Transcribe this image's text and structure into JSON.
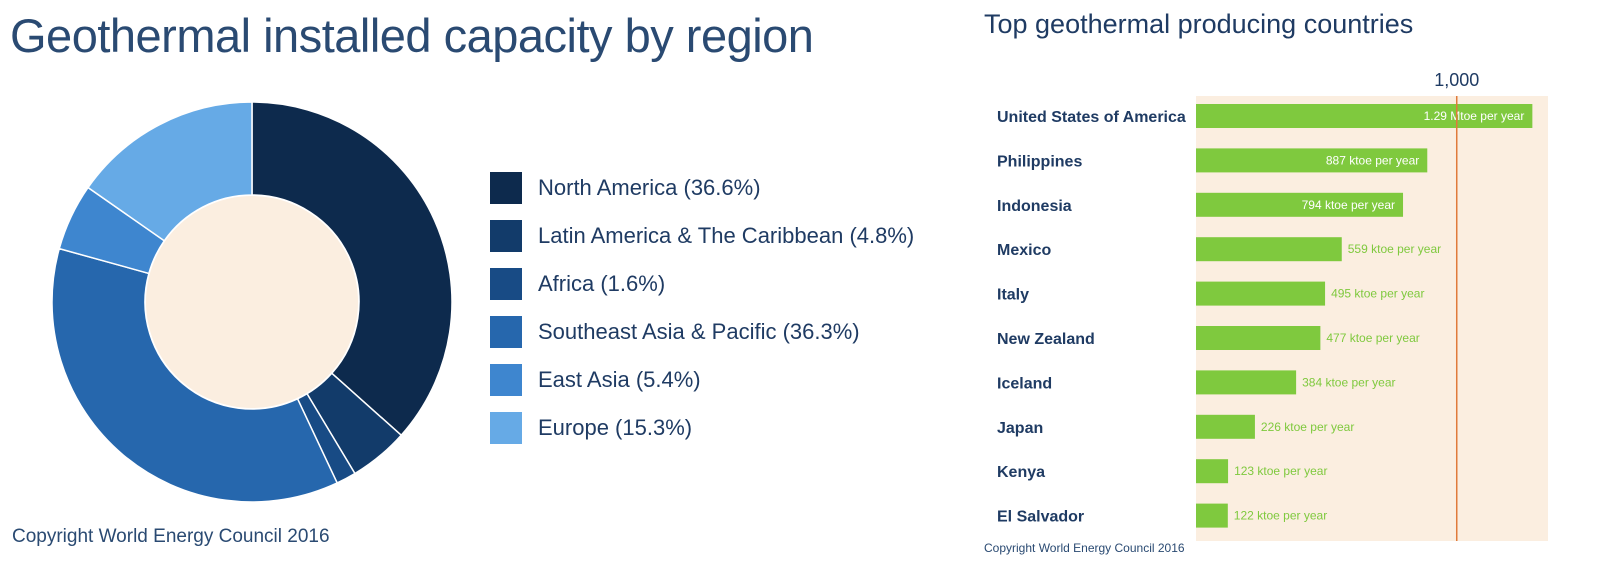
{
  "left": {
    "title": "Geothermal installed capacity by region",
    "copyright": "Copyright World Energy Council 2016"
  },
  "right": {
    "title": "Top geothermal producing countries",
    "copyright": "Copyright World Energy Council 2016"
  },
  "colors": {
    "donut_hole": "#fbeee0",
    "bar_bg": "#fbeee0",
    "bar": "#7fc93e",
    "reference_line": "#e07a3a",
    "text": "#1f3b63"
  },
  "chart_data": [
    {
      "type": "pie",
      "donut": true,
      "title": "Geothermal installed capacity by region",
      "legend_position": "right",
      "slices": [
        {
          "label": "North America (36.6%)",
          "value": 36.6,
          "color": "#0d2a4d"
        },
        {
          "label": "Latin America & The Caribbean (4.8%)",
          "value": 4.8,
          "color": "#123b6a"
        },
        {
          "label": "Africa (1.6%)",
          "value": 1.6,
          "color": "#184b85"
        },
        {
          "label": "Southeast Asia & Pacific (36.3%)",
          "value": 36.3,
          "color": "#2667ad"
        },
        {
          "label": "East Asia (5.4%)",
          "value": 5.4,
          "color": "#3e86cf"
        },
        {
          "label": "Europe (15.3%)",
          "value": 15.3,
          "color": "#66aae6"
        }
      ]
    },
    {
      "type": "bar",
      "orientation": "horizontal",
      "title": "Top geothermal producing countries",
      "categories": [
        "United States of America",
        "Philippines",
        "Indonesia",
        "Mexico",
        "Italy",
        "New Zealand",
        "Iceland",
        "Japan",
        "Kenya",
        "El Salvador"
      ],
      "values": [
        1290,
        887,
        794,
        559,
        495,
        477,
        384,
        226,
        123,
        122
      ],
      "value_labels": [
        "1.29 Mtoe per year",
        "887 ktoe per year",
        "794 ktoe per year",
        "559 ktoe per year",
        "495 ktoe per year",
        "477 ktoe per year",
        "384 ktoe per year",
        "226 ktoe per year",
        "123 ktoe per year",
        "122 ktoe per year"
      ],
      "xlim": [
        0,
        1350
      ],
      "reference_line": {
        "value": 1000,
        "label": "1,000"
      },
      "grid": false
    }
  ]
}
